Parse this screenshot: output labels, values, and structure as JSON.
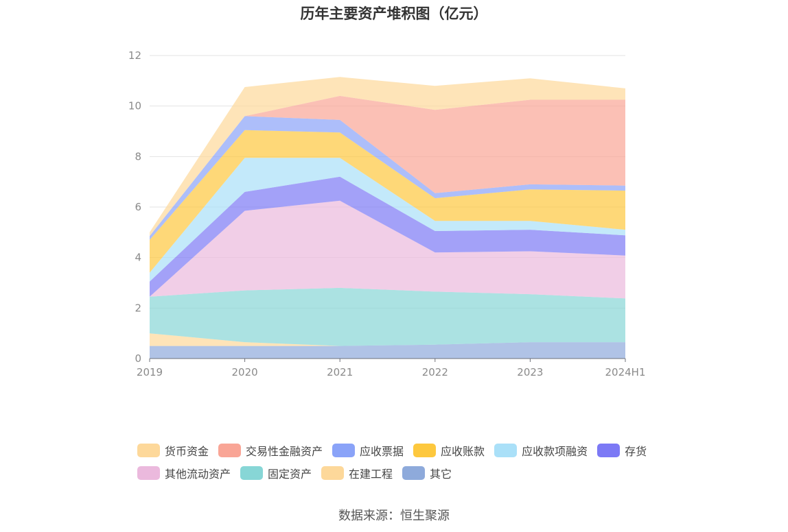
{
  "chart_data": {
    "type": "area",
    "stacked": true,
    "title": "历年主要资产堆积图（亿元）",
    "categories": [
      "2019",
      "2020",
      "2021",
      "2022",
      "2023",
      "2024H1"
    ],
    "ylim": [
      0,
      12
    ],
    "yticks": [
      0,
      2,
      4,
      6,
      8,
      10,
      12
    ],
    "grid": true,
    "legend_position": "bottom",
    "series": [
      {
        "name": "其它",
        "color": "#8eaadb",
        "values": [
          0.5,
          0.5,
          0.5,
          0.55,
          0.65,
          0.65
        ]
      },
      {
        "name": "在建工程",
        "color": "#fdd89a",
        "values": [
          0.5,
          0.15,
          0.0,
          0.0,
          0.0,
          0.0
        ]
      },
      {
        "name": "固定资产",
        "color": "#87d6d6",
        "values": [
          1.45,
          2.05,
          2.3,
          2.1,
          1.9,
          1.73
        ]
      },
      {
        "name": "其他流动资产",
        "color": "#ebb9dd",
        "values": [
          0.0,
          3.15,
          3.45,
          1.55,
          1.7,
          1.7
        ]
      },
      {
        "name": "存货",
        "color": "#7c79f5",
        "values": [
          0.6,
          0.75,
          0.95,
          0.85,
          0.85,
          0.8
        ]
      },
      {
        "name": "应收款项融资",
        "color": "#aae0f8",
        "values": [
          0.35,
          1.35,
          0.75,
          0.4,
          0.35,
          0.22
        ]
      },
      {
        "name": "应收账款",
        "color": "#fdc83e",
        "values": [
          1.3,
          1.1,
          1.0,
          0.9,
          1.25,
          1.55
        ]
      },
      {
        "name": "应收票据",
        "color": "#8aa3f8",
        "values": [
          0.15,
          0.55,
          0.5,
          0.2,
          0.2,
          0.2
        ]
      },
      {
        "name": "交易性金融资产",
        "color": "#f9a596",
        "values": [
          0.0,
          0.0,
          0.95,
          3.3,
          3.35,
          3.4
        ]
      },
      {
        "name": "货币资金",
        "color": "#fdd89a",
        "values": [
          0.15,
          1.15,
          0.75,
          0.95,
          0.85,
          0.45
        ]
      }
    ]
  },
  "legend": {
    "row1": [
      {
        "label": "货币资金",
        "color": "#fdd89a"
      },
      {
        "label": "交易性金融资产",
        "color": "#f9a596"
      },
      {
        "label": "应收票据",
        "color": "#8aa3f8"
      },
      {
        "label": "应收账款",
        "color": "#fdc83e"
      },
      {
        "label": "应收款项融资",
        "color": "#aae0f8"
      },
      {
        "label": "存货",
        "color": "#7c79f5"
      }
    ],
    "row2": [
      {
        "label": "其他流动资产",
        "color": "#ebb9dd"
      },
      {
        "label": "固定资产",
        "color": "#87d6d6"
      },
      {
        "label": "在建工程",
        "color": "#fdd89a"
      },
      {
        "label": "其它",
        "color": "#8eaadb"
      }
    ]
  },
  "source": "数据来源：恒生聚源"
}
